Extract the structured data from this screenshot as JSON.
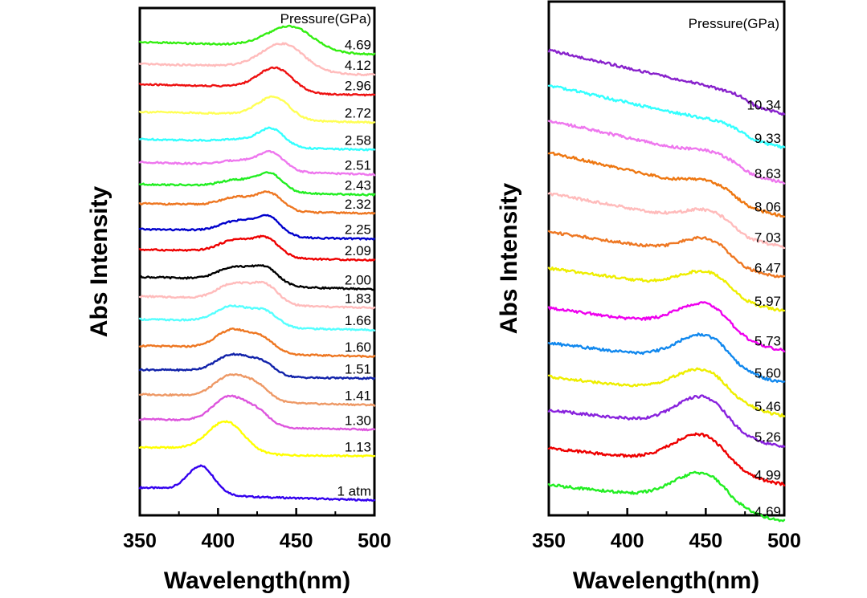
{
  "chart_data": [
    {
      "type": "line",
      "xlabel": "Wavelength(nm)",
      "ylabel": "Abs Intensity",
      "xlim": [
        350,
        500
      ],
      "xticks": [
        "350",
        "400",
        "450",
        "500"
      ],
      "legend_title": "Pressure(GPa)",
      "series": [
        {
          "name": "1 atm",
          "color": "#3300ee",
          "offset": 2.4,
          "peaks": [
            [
              389,
              2.7,
              8
            ]
          ],
          "baseline": [
            0.75,
            0.15
          ],
          "edge": [
            402,
            5,
            0
          ]
        },
        {
          "name": "1.13",
          "color": "#ffff00",
          "offset": 7.4,
          "peaks": [
            [
              405,
              3.1,
              11
            ]
          ],
          "baseline": [
            0.3,
            0.0
          ],
          "edge": [
            420,
            6,
            0
          ]
        },
        {
          "name": "1.30",
          "color": "#dd55dd",
          "offset": 10.4,
          "peaks": [
            [
              407,
              2.7,
              10
            ],
            [
              425,
              1.2,
              8
            ]
          ],
          "baseline": [
            0.5,
            0.0
          ],
          "edge": [
            432,
            5,
            0
          ]
        },
        {
          "name": "1.41",
          "color": "#ee9966",
          "offset": 13.2,
          "peaks": [
            [
              408,
              2.3,
              10
            ],
            [
              425,
              1.2,
              8
            ]
          ],
          "baseline": [
            0.5,
            0.0
          ],
          "edge": [
            434,
            5,
            0
          ]
        },
        {
          "name": "1.51",
          "color": "#1122aa",
          "offset": 16.2,
          "peaks": [
            [
              409,
              1.8,
              10
            ],
            [
              428,
              1.1,
              8
            ]
          ],
          "baseline": [
            0.3,
            0.0
          ],
          "edge": [
            436,
            5,
            0
          ]
        },
        {
          "name": "1.60",
          "color": "#ee7722",
          "offset": 18.7,
          "peaks": [
            [
              409,
              2.0,
              10
            ],
            [
              428,
              1.2,
              8
            ]
          ],
          "baseline": [
            0.5,
            0.0
          ],
          "edge": [
            437,
            5,
            0
          ]
        },
        {
          "name": "1.66",
          "color": "#55ffff",
          "offset": 21.7,
          "peaks": [
            [
              409,
              1.7,
              10
            ],
            [
              430,
              1.3,
              8
            ]
          ],
          "baseline": [
            0.5,
            0.0
          ],
          "edge": [
            438,
            5,
            0
          ]
        },
        {
          "name": "1.83",
          "color": "#ffbbbb",
          "offset": 24.2,
          "peaks": [
            [
              410,
              1.7,
              10
            ],
            [
              430,
              1.7,
              8
            ]
          ],
          "baseline": [
            0.6,
            0.0
          ],
          "edge": [
            440,
            5,
            0
          ]
        },
        {
          "name": "2.00",
          "color": "#000000",
          "offset": 26.3,
          "peaks": [
            [
              410,
              1.4,
              10
            ],
            [
              430,
              1.5,
              8
            ]
          ],
          "baseline": [
            0.7,
            0.0
          ],
          "edge": [
            440,
            5,
            0
          ]
        },
        {
          "name": "2.09",
          "color": "#ee0000",
          "offset": 29.6,
          "peaks": [
            [
              411,
              1.3,
              10
            ],
            [
              431,
              1.6,
              8
            ]
          ],
          "baseline": [
            0.5,
            0.0
          ],
          "edge": [
            440,
            5,
            0
          ]
        },
        {
          "name": "2.25",
          "color": "#0000cc",
          "offset": 32.0,
          "peaks": [
            [
              412,
              1.1,
              10
            ],
            [
              432,
              1.7,
              8
            ]
          ],
          "baseline": [
            0.4,
            0.0
          ],
          "edge": [
            441,
            5,
            0
          ]
        },
        {
          "name": "2.32",
          "color": "#ee7722",
          "offset": 34.9,
          "peaks": [
            [
              412,
              0.9,
              10
            ],
            [
              433,
              1.5,
              8
            ]
          ],
          "baseline": [
            0.4,
            0.0
          ],
          "edge": [
            442,
            5,
            0
          ]
        },
        {
          "name": "2.43",
          "color": "#22ee22",
          "offset": 37.0,
          "peaks": [
            [
              412,
              0.7,
              10
            ],
            [
              433,
              1.6,
              8
            ]
          ],
          "baseline": [
            0.5,
            0.0
          ],
          "edge": [
            442,
            5,
            0
          ]
        },
        {
          "name": "2.51",
          "color": "#ee77ee",
          "offset": 39.3,
          "peaks": [
            [
              413,
              0.5,
              10
            ],
            [
              434,
              1.6,
              8
            ]
          ],
          "baseline": [
            0.7,
            0.0
          ],
          "edge": [
            443,
            5,
            0
          ]
        },
        {
          "name": "2.58",
          "color": "#33ffff",
          "offset": 42.1,
          "peaks": [
            [
              413,
              0.2,
              10
            ],
            [
              434,
              1.6,
              8
            ]
          ],
          "baseline": [
            0.5,
            0.0
          ],
          "edge": [
            443,
            5,
            0
          ]
        },
        {
          "name": "2.72",
          "color": "#ffff55",
          "offset": 45.2,
          "peaks": [
            [
              436,
              2.1,
              10
            ]
          ],
          "baseline": [
            0.5,
            0.0
          ],
          "edge": [
            444,
            5,
            0
          ]
        },
        {
          "name": "2.96",
          "color": "#ee1111",
          "offset": 48.3,
          "peaks": [
            [
              437,
              2.3,
              11
            ]
          ],
          "baseline": [
            0.5,
            0.0
          ],
          "edge": [
            445,
            5,
            0
          ]
        },
        {
          "name": "4.12",
          "color": "#ffbbbb",
          "offset": 50.6,
          "peaks": [
            [
              442,
              2.7,
              14
            ]
          ],
          "baseline": [
            0.5,
            0.0
          ],
          "edge": [
            452,
            5,
            0
          ]
        },
        {
          "name": "4.69",
          "color": "#33ee11",
          "offset": 52.9,
          "peaks": [
            [
              447,
              2.3,
              15
            ]
          ],
          "baseline": [
            0.7,
            0.0
          ],
          "edge": [
            457,
            5,
            0
          ]
        }
      ]
    },
    {
      "type": "line",
      "xlabel": "Wavelength(nm)",
      "ylabel": "Abs Intensity",
      "xlim": [
        350,
        500
      ],
      "xticks": [
        "350",
        "400",
        "450",
        "500"
      ],
      "legend_title": "Pressure(GPa)",
      "series": [
        {
          "name": "4.69",
          "color": "#22ee22",
          "offset": 0.3,
          "peaks": [
            [
              448,
              1.9,
              18
            ]
          ],
          "baseline": [
            1.7,
            0.0
          ],
          "edge": [
            462,
            4,
            0
          ]
        },
        {
          "name": "4.99",
          "color": "#ee0000",
          "offset": 2.7,
          "peaks": [
            [
              447,
              2.0,
              18
            ]
          ],
          "baseline": [
            1.7,
            0.0
          ],
          "edge": [
            462,
            4,
            0
          ]
        },
        {
          "name": "5.26",
          "color": "#8822dd",
          "offset": 5.2,
          "peaks": [
            [
              448,
              2.0,
              17
            ]
          ],
          "baseline": [
            1.7,
            0.0
          ],
          "edge": [
            463,
            4,
            0
          ]
        },
        {
          "name": "5.46",
          "color": "#eeee00",
          "offset": 7.2,
          "peaks": [
            [
              448,
              1.7,
              18
            ]
          ],
          "baseline": [
            1.9,
            0.0
          ],
          "edge": [
            463,
            4,
            0
          ]
        },
        {
          "name": "5.60",
          "color": "#1188ee",
          "offset": 9.4,
          "peaks": [
            [
              449,
              1.8,
              17
            ]
          ],
          "baseline": [
            1.9,
            0.0
          ],
          "edge": [
            464,
            4,
            0
          ]
        },
        {
          "name": "5.73",
          "color": "#ee00ee",
          "offset": 11.5,
          "peaks": [
            [
              449,
              1.7,
              17
            ]
          ],
          "baseline": [
            2.1,
            0.0
          ],
          "edge": [
            465,
            4,
            0
          ]
        },
        {
          "name": "5.97",
          "color": "#eeee00",
          "offset": 14.1,
          "peaks": [
            [
              450,
              1.2,
              16
            ]
          ],
          "baseline": [
            2.1,
            0.0
          ],
          "edge": [
            466,
            4,
            0
          ]
        },
        {
          "name": "6.47",
          "color": "#ee7722",
          "offset": 16.3,
          "peaks": [
            [
              450,
              1.1,
              15
            ]
          ],
          "baseline": [
            2.3,
            0.0
          ],
          "edge": [
            466,
            4,
            0
          ]
        },
        {
          "name": "7.03",
          "color": "#ffbbbb",
          "offset": 18.3,
          "peaks": [
            [
              451,
              0.8,
              14
            ]
          ],
          "baseline": [
            2.8,
            0.0
          ],
          "edge": [
            468,
            4,
            0
          ]
        },
        {
          "name": "8.06",
          "color": "#ee7711",
          "offset": 20.3,
          "peaks": [
            [
              451,
              0.5,
              13
            ]
          ],
          "baseline": [
            3.5,
            0.0
          ],
          "edge": [
            470,
            4,
            0
          ]
        },
        {
          "name": "8.63",
          "color": "#ee77ee",
          "offset": 22.5,
          "peaks": [
            [
              452,
              0.3,
              12
            ]
          ],
          "baseline": [
            3.4,
            0.0
          ],
          "edge": [
            472,
            4,
            0
          ]
        },
        {
          "name": "9.33",
          "color": "#33ffff",
          "offset": 24.8,
          "peaks": [
            [
              452,
              0.1,
              12
            ]
          ],
          "baseline": [
            3.4,
            0.0
          ],
          "edge": [
            474,
            4,
            0
          ]
        },
        {
          "name": "10.34",
          "color": "#8822cc",
          "offset": 27.0,
          "peaks": [],
          "baseline": [
            3.5,
            0.0
          ],
          "edge": [
            476,
            4,
            0
          ]
        }
      ]
    }
  ]
}
